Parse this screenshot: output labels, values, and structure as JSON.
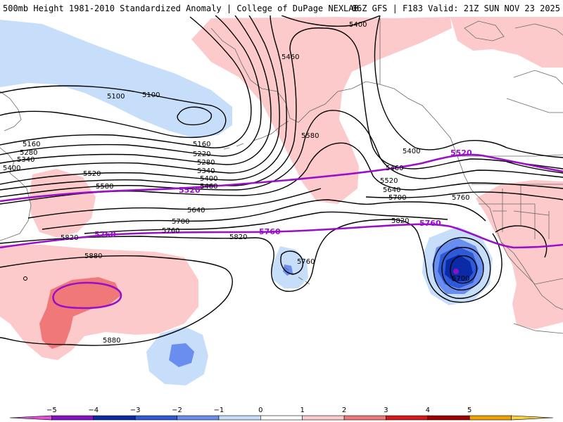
{
  "header": {
    "title_left": "500mb Height 1981-2010 Standardized Anomaly | College of DuPage NEXLAB",
    "title_right": "06Z GFS | F183 Valid: 21Z SUN NOV 23 2025"
  },
  "contour_labels": [
    {
      "id": "l5400a",
      "text": "5400"
    },
    {
      "id": "l5460a",
      "text": "5460"
    },
    {
      "id": "l5100a",
      "text": "5100"
    },
    {
      "id": "l5100b",
      "text": "5100"
    },
    {
      "id": "l5160a",
      "text": "5160"
    },
    {
      "id": "l5280a",
      "text": "5280"
    },
    {
      "id": "l5340a",
      "text": "5340"
    },
    {
      "id": "l5400b",
      "text": "5400"
    },
    {
      "id": "l5160b",
      "text": "5160"
    },
    {
      "id": "l5220a",
      "text": "5220"
    },
    {
      "id": "l5280b",
      "text": "5280"
    },
    {
      "id": "l5340b",
      "text": "5340"
    },
    {
      "id": "l5400c",
      "text": "5400"
    },
    {
      "id": "l5460b",
      "text": "5460"
    },
    {
      "id": "l5520a",
      "text": "5520"
    },
    {
      "id": "l5580a",
      "text": "5580"
    },
    {
      "id": "l5580b",
      "text": "5580"
    },
    {
      "id": "l5400d",
      "text": "5400"
    },
    {
      "id": "l5460c",
      "text": "5460"
    },
    {
      "id": "l5520b",
      "text": "5520"
    },
    {
      "id": "l5640a",
      "text": "5640"
    },
    {
      "id": "l5700a",
      "text": "5700"
    },
    {
      "id": "l5760a",
      "text": "5760"
    },
    {
      "id": "l5640b",
      "text": "5640"
    },
    {
      "id": "l5700b",
      "text": "5700"
    },
    {
      "id": "l5760b",
      "text": "5760"
    },
    {
      "id": "l5820a",
      "text": "5820"
    },
    {
      "id": "l5820b",
      "text": "5820"
    },
    {
      "id": "l5820c",
      "text": "5820"
    },
    {
      "id": "l5880a",
      "text": "5880"
    },
    {
      "id": "l5880b",
      "text": "5880"
    },
    {
      "id": "l5760c",
      "text": "5760"
    },
    {
      "id": "l5700c",
      "text": "5700"
    }
  ],
  "highlight_labels": [
    {
      "id": "h5520a",
      "text": "5520"
    },
    {
      "id": "h5520b",
      "text": "5520"
    },
    {
      "id": "h5760a",
      "text": "5760"
    },
    {
      "id": "h5760b",
      "text": "5760"
    },
    {
      "id": "h5760c",
      "text": "5760"
    }
  ],
  "colorbar": {
    "ticks": [
      "−5",
      "−4",
      "−3",
      "−2",
      "−1",
      "0",
      "1",
      "2",
      "3",
      "4",
      "5"
    ],
    "colors": [
      "#e050d8",
      "#8a10c8",
      "#0a2aa8",
      "#2e5ad8",
      "#6a8ef0",
      "#c6defa",
      "#ffffff",
      "#fccaca",
      "#f07878",
      "#d81818",
      "#a00000",
      "#f0a000",
      "#f8d040"
    ]
  },
  "colors": {
    "contour": "#000000",
    "highlight_contour": "#9a10c8",
    "coastline": "#6a6a6a"
  }
}
